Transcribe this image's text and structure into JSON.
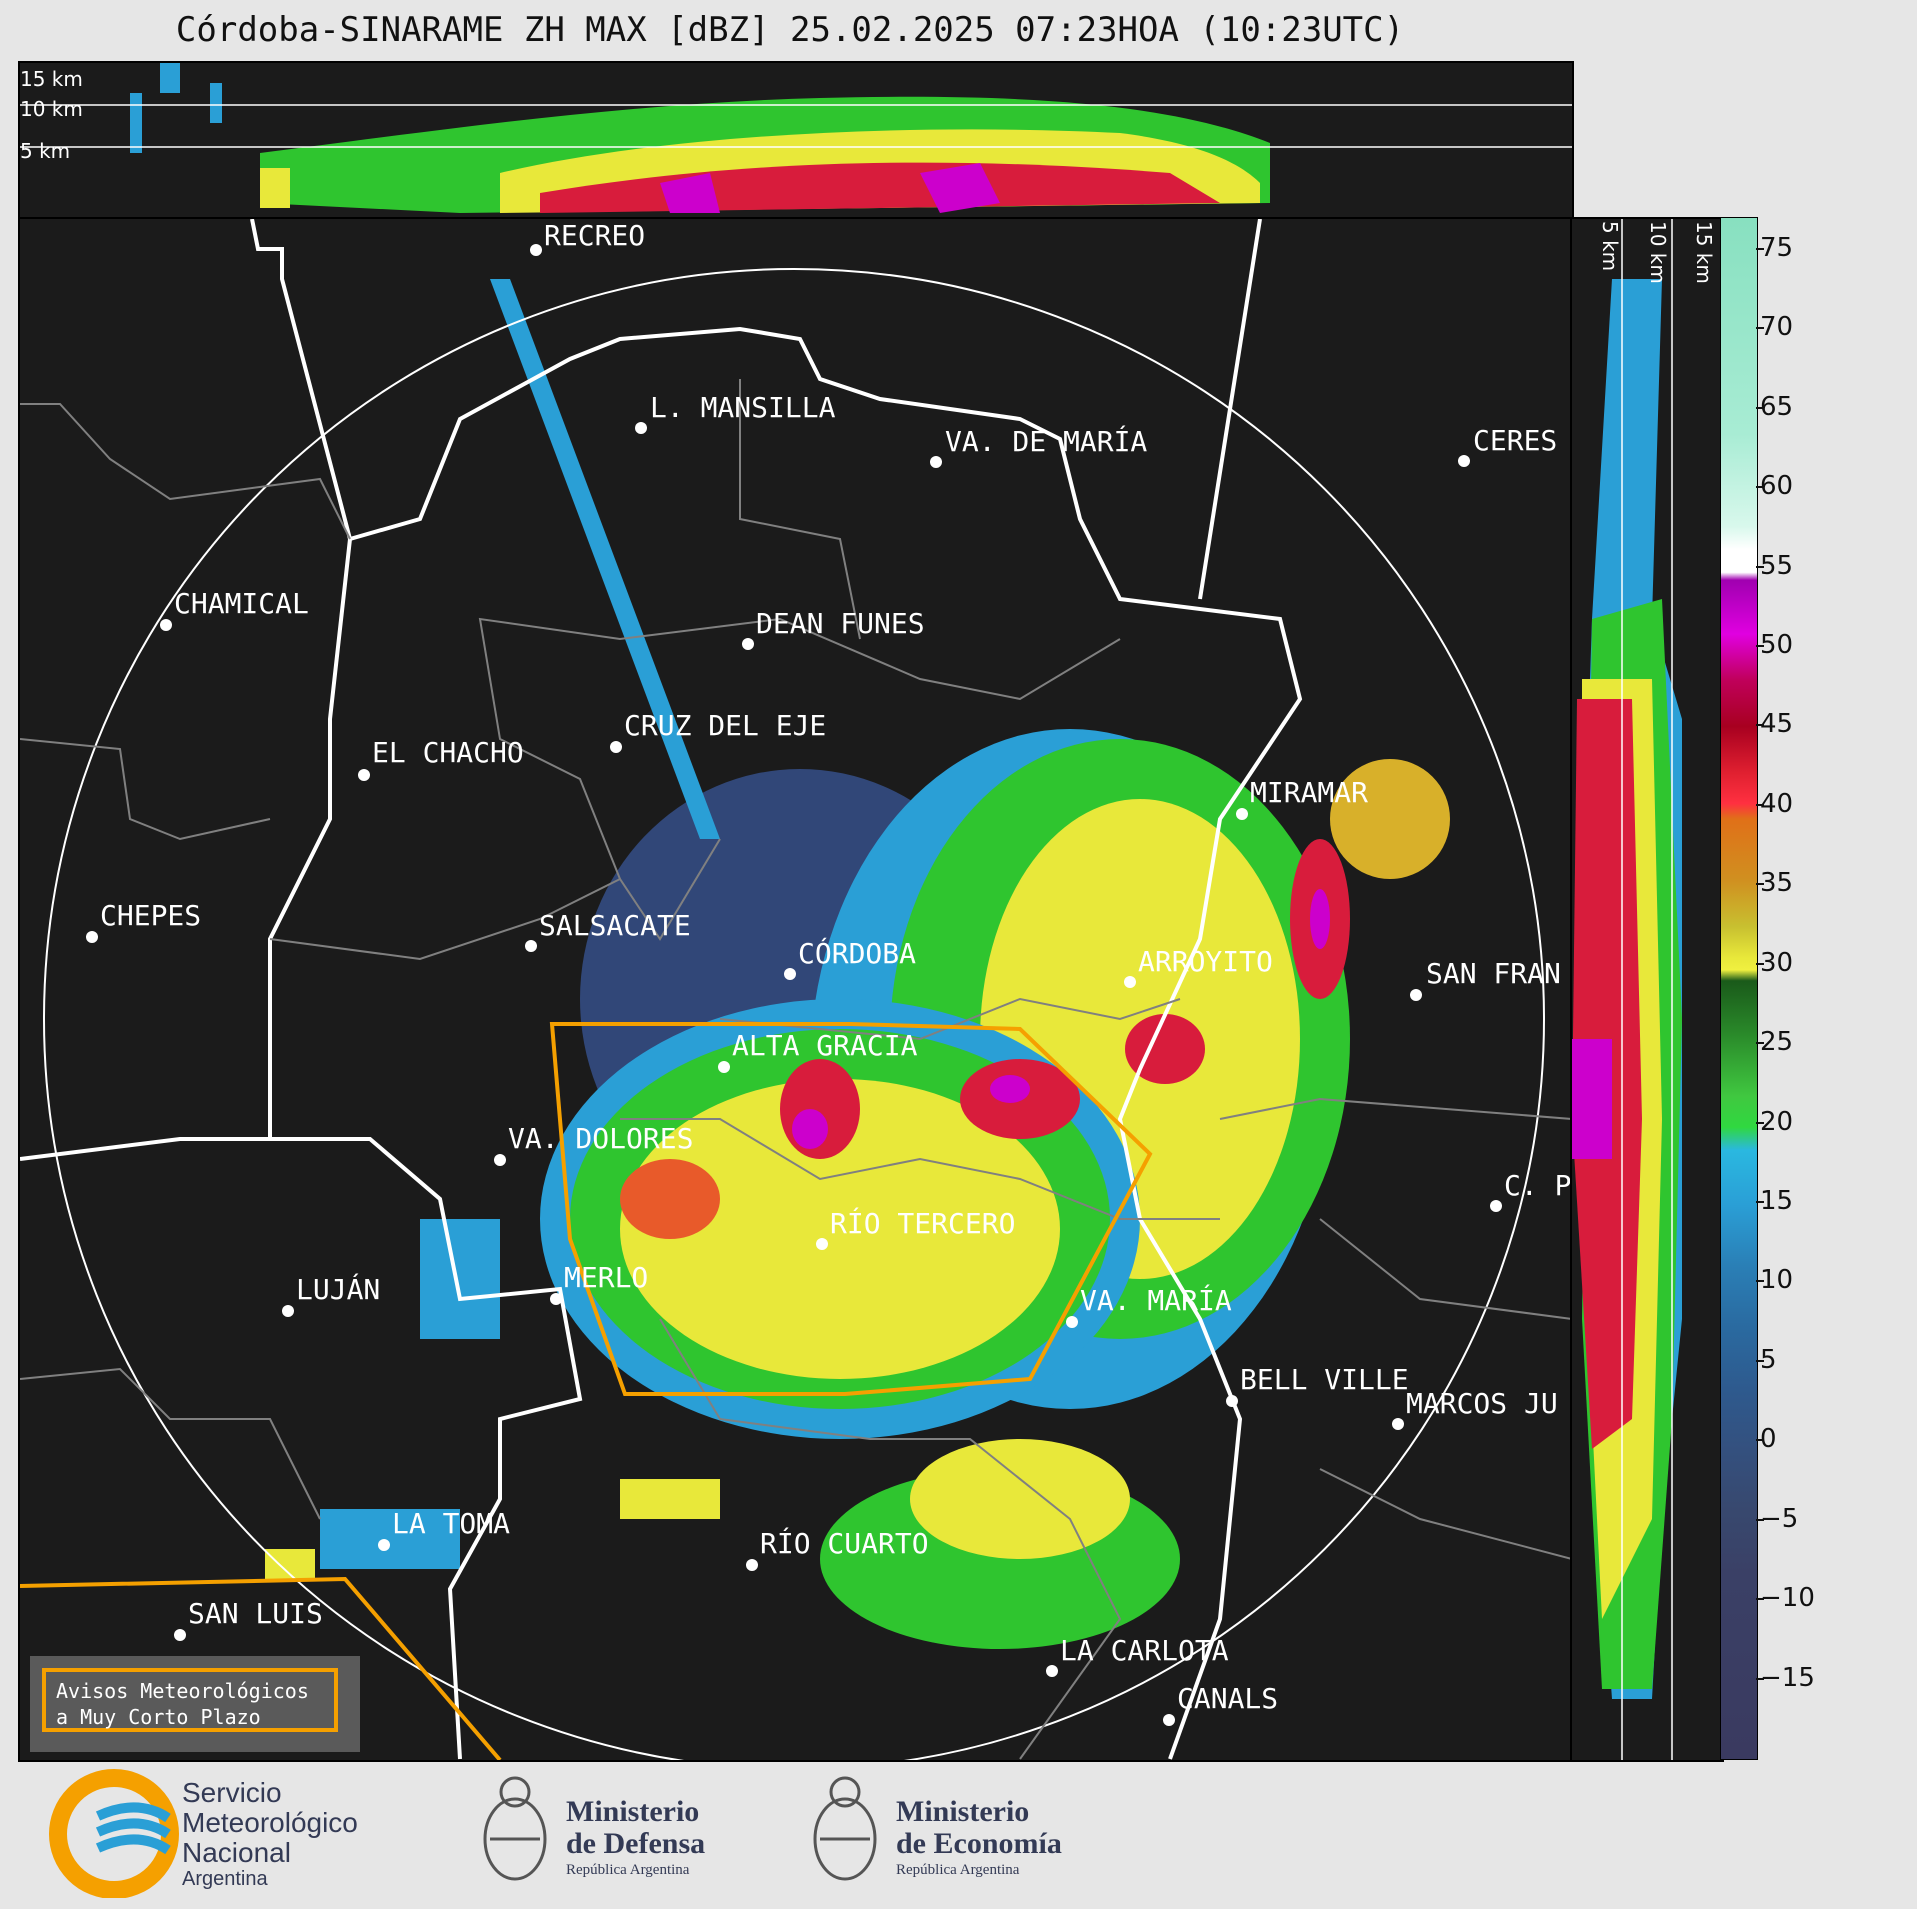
{
  "title": "Córdoba-SINARAME ZH MAX [dBZ] 25.02.2025 07:23HOA (10:23UTC)",
  "top_panel": {
    "km_labels": [
      "15 km",
      "10 km",
      "5 km"
    ]
  },
  "side_panel": {
    "km_labels": [
      "5 km",
      "10 km",
      "15 km"
    ]
  },
  "colorbar": {
    "ticks": [
      "75",
      "70",
      "65",
      "60",
      "55",
      "50",
      "45",
      "40",
      "35",
      "30",
      "25",
      "20",
      "15",
      "10",
      "5",
      "0",
      "−5",
      "−10",
      "−15"
    ],
    "range": [
      -20,
      77
    ]
  },
  "cities": [
    {
      "name": "RECREO"
    },
    {
      "name": "L. MANSILLA"
    },
    {
      "name": "VA. DE MARÍA"
    },
    {
      "name": "CERES"
    },
    {
      "name": "CHAMICAL"
    },
    {
      "name": "DEAN FUNES"
    },
    {
      "name": "CRUZ DEL EJE"
    },
    {
      "name": "EL CHACHO"
    },
    {
      "name": "MIRAMAR"
    },
    {
      "name": "CHEPES"
    },
    {
      "name": "SALSACATE"
    },
    {
      "name": "CÓRDOBA"
    },
    {
      "name": "ARROYITO"
    },
    {
      "name": "SAN FRAN"
    },
    {
      "name": "ALTA GRACIA"
    },
    {
      "name": "VA. DOLORES"
    },
    {
      "name": "C. P"
    },
    {
      "name": "RÍO TERCERO"
    },
    {
      "name": "LUJÁN"
    },
    {
      "name": "MERLO"
    },
    {
      "name": "VA. MARÍA"
    },
    {
      "name": "BELL VILLE"
    },
    {
      "name": "MARCOS JU"
    },
    {
      "name": "LA TOMA"
    },
    {
      "name": "RÍO CUARTO"
    },
    {
      "name": "SAN LUIS"
    },
    {
      "name": "LA CARLOTA"
    },
    {
      "name": "CANALS"
    }
  ],
  "avisos": {
    "line1": "Avisos Meteorológicos",
    "line2": "a Muy Corto Plazo"
  },
  "footer": {
    "smn": {
      "line1": "Servicio",
      "line2": "Meteorológico",
      "line3": "Nacional",
      "line4": "Argentina"
    },
    "defensa": {
      "line1": "Ministerio",
      "line2": "de Defensa",
      "line3": "República Argentina"
    },
    "economia": {
      "line1": "Ministerio",
      "line2": "de Economía",
      "line3": "República Argentina"
    }
  },
  "colors": {
    "warning_polygon": "#f5a000",
    "boundary": "#ffffff",
    "dept_line": "#808080"
  }
}
